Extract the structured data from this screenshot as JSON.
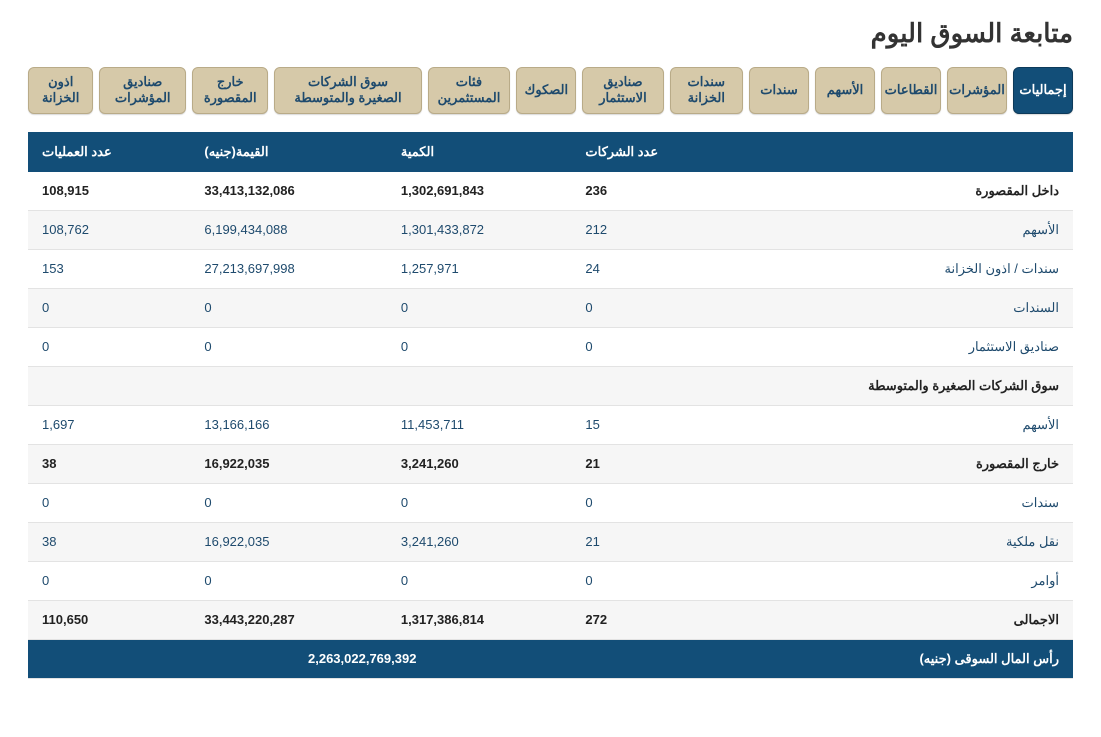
{
  "title": "متابعة السوق اليوم",
  "tabs": [
    {
      "label": "إجماليات",
      "active": true
    },
    {
      "label": "المؤشرات"
    },
    {
      "label": "القطاعات"
    },
    {
      "label": "الأسهم"
    },
    {
      "label": "سندات"
    },
    {
      "label": "سندات الخزانة"
    },
    {
      "label": "صناديق الاستثمار"
    },
    {
      "label": "الصكوك"
    },
    {
      "label": "فئات المستثمرين"
    },
    {
      "label": "سوق الشركات الصغيرة والمتوسطة"
    },
    {
      "label": "خارج المقصورة"
    },
    {
      "label": "صناديق المؤشرات"
    },
    {
      "label": "اذون الخزانة"
    }
  ],
  "columns": {
    "label": "",
    "companies": "عدد الشركات",
    "volume": "الكمية",
    "value": "القيمة(جنيه)",
    "trades": "عدد العمليات"
  },
  "rows": [
    {
      "label": "داخل المقصورة",
      "companies": "236",
      "volume": "1,302,691,843",
      "value": "33,413,132,086",
      "trades": "108,915",
      "style": "section"
    },
    {
      "label": "الأسهم",
      "companies": "212",
      "volume": "1,301,433,872",
      "value": "6,199,434,088",
      "trades": "108,762",
      "style": "link alt"
    },
    {
      "label": "سندات / اذون الخزانة",
      "companies": "24",
      "volume": "1,257,971",
      "value": "27,213,697,998",
      "trades": "153",
      "style": "link"
    },
    {
      "label": "السندات",
      "companies": "0",
      "volume": "0",
      "value": "0",
      "trades": "0",
      "style": "link alt"
    },
    {
      "label": "صناديق الاستثمار",
      "companies": "0",
      "volume": "0",
      "value": "0",
      "trades": "0",
      "style": "link"
    },
    {
      "label": "سوق الشركات الصغيرة والمتوسطة",
      "companies": "",
      "volume": "",
      "value": "",
      "trades": "",
      "style": "section alt"
    },
    {
      "label": "الأسهم",
      "companies": "15",
      "volume": "11,453,711",
      "value": "13,166,166",
      "trades": "1,697",
      "style": "link"
    },
    {
      "label": "خارج المقصورة",
      "companies": "21",
      "volume": "3,241,260",
      "value": "16,922,035",
      "trades": "38",
      "style": "dark alt"
    },
    {
      "label": "سندات",
      "companies": "0",
      "volume": "0",
      "value": "0",
      "trades": "0",
      "style": "link"
    },
    {
      "label": "نقل ملكية",
      "companies": "21",
      "volume": "3,241,260",
      "value": "16,922,035",
      "trades": "38",
      "style": "link alt"
    },
    {
      "label": "أوامر",
      "companies": "0",
      "volume": "0",
      "value": "0",
      "trades": "0",
      "style": "link"
    },
    {
      "label": "الاجمالى",
      "companies": "272",
      "volume": "1,317,386,814",
      "value": "33,443,220,287",
      "trades": "110,650",
      "style": "dark alt"
    }
  ],
  "footer": {
    "label": "رأس المال السوقى (جنيه)",
    "value": "2,263,022,769,392"
  },
  "colors": {
    "primary": "#124e78",
    "tab_bg": "#d6c9a9",
    "tab_border": "#b9ab88",
    "link_text": "#1e4a6d",
    "row_border": "#e3e3e3",
    "alt_row": "#f6f6f6"
  }
}
